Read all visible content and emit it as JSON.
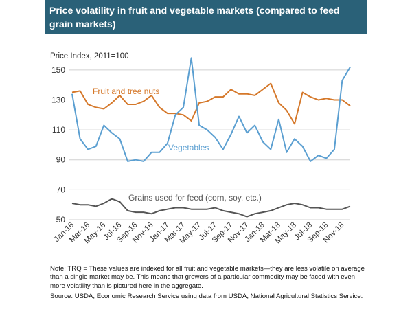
{
  "header": {
    "title": "Price volatility in fruit and vegetable markets (compared to feed grain markets)"
  },
  "colors": {
    "header_bg": "#2a6178",
    "fruit": "#d5782a",
    "vegetables": "#5b9fd1",
    "grains": "#555555",
    "grid": "#d0d0d0"
  },
  "chart_data": {
    "type": "line",
    "ylabel": "Price Index, 2011=100",
    "ylim": [
      50,
      160
    ],
    "yticks": [
      50,
      70,
      90,
      110,
      130,
      150
    ],
    "grid": true,
    "x_tick_labels": [
      "Jan-16",
      "Mar-16",
      "May-16",
      "Jul-16",
      "Sep-16",
      "Nov-16",
      "Jan-17",
      "Mar-17",
      "May-17",
      "Jul-17",
      "Sep-17",
      "Nov-17",
      "Jan-18",
      "Mar-18",
      "May-18",
      "Jul-18",
      "Sep-18",
      "Nov-18"
    ],
    "x": [
      "Jan-16",
      "Feb-16",
      "Mar-16",
      "Apr-16",
      "May-16",
      "Jun-16",
      "Jul-16",
      "Aug-16",
      "Sep-16",
      "Oct-16",
      "Nov-16",
      "Dec-16",
      "Jan-17",
      "Feb-17",
      "Mar-17",
      "Apr-17",
      "May-17",
      "Jun-17",
      "Jul-17",
      "Aug-17",
      "Sep-17",
      "Oct-17",
      "Nov-17",
      "Dec-17",
      "Jan-18",
      "Feb-18",
      "Mar-18",
      "Apr-18",
      "May-18",
      "Jun-18",
      "Jul-18",
      "Aug-18",
      "Sep-18",
      "Oct-18",
      "Nov-18",
      "Dec-18"
    ],
    "series": [
      {
        "name": "Fruit and tree nuts",
        "color_key": "fruit",
        "values": [
          135,
          136,
          127,
          125,
          124,
          128,
          133,
          127,
          127,
          129,
          133,
          125,
          121,
          121,
          120,
          116,
          128,
          129,
          132,
          132,
          137,
          134,
          134,
          133,
          137,
          141,
          128,
          123,
          114,
          135,
          132,
          130,
          131,
          130,
          130,
          126
        ]
      },
      {
        "name": "Vegetables",
        "color_key": "vegetables",
        "values": [
          134,
          104,
          97,
          99,
          113,
          108,
          104,
          89,
          90,
          89,
          95,
          95,
          101,
          120,
          125,
          158,
          113,
          110,
          105,
          97,
          107,
          119,
          108,
          113,
          102,
          97,
          117,
          95,
          104,
          99,
          89,
          93,
          91,
          97,
          143,
          152
        ]
      },
      {
        "name": "Grains used for feed (corn, soy, etc.)",
        "color_key": "grains",
        "values": [
          61,
          60,
          60,
          59,
          61,
          64,
          62,
          56,
          55,
          55,
          54,
          56,
          57,
          58,
          58,
          57,
          57,
          57,
          58,
          56,
          55,
          54,
          52,
          54,
          55,
          56,
          58,
          60,
          61,
          60,
          58,
          58,
          57,
          57,
          57,
          59
        ]
      }
    ]
  },
  "notes": {
    "note": "Note: TRQ = These values are indexed for all fruit and vegetable markets—they are less volatile on average than a single market may be. This means that growers of a particular commodity may be faced with even more volatility than is pictured here in the aggregate.",
    "source": "Source: USDA, Economic Research Service using data from USDA, National Agricultural Statistics Service."
  }
}
